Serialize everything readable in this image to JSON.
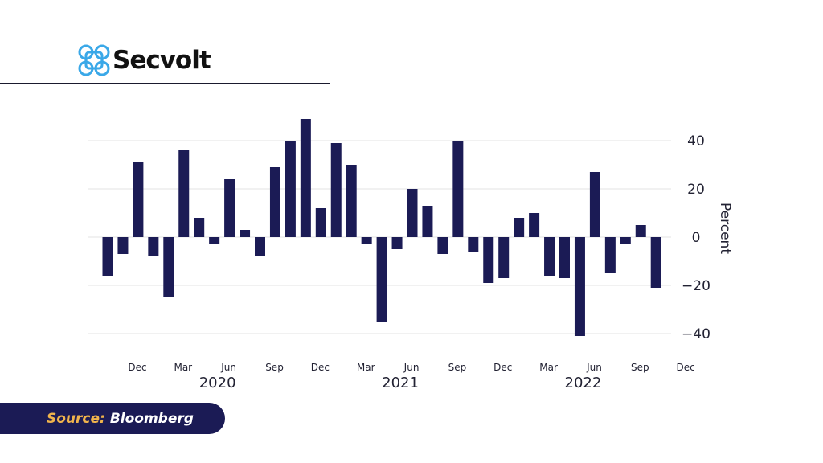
{
  "brand": {
    "name": "Secvolt",
    "logo_icon": "clover-knot-icon",
    "logo_color": "#3aa8e8"
  },
  "source": {
    "label": "Source:",
    "value": "Bloomberg"
  },
  "colors": {
    "bar": "#1b1b55",
    "grid": "#e3e3e3",
    "text": "#222233",
    "accent": "#f0b44c"
  },
  "chart_data": {
    "type": "bar",
    "title": "",
    "xlabel": "",
    "ylabel": "Percent",
    "ylim": [
      -45,
      50
    ],
    "yticks": [
      40,
      20,
      0,
      -20,
      -40
    ],
    "ytick_labels": [
      "40",
      "20",
      "0",
      "−20",
      "−40"
    ],
    "y_axis_side": "right",
    "grid": true,
    "month_ticks": [
      {
        "label": "Dec",
        "index": 1
      },
      {
        "label": "Mar",
        "index": 4
      },
      {
        "label": "Jun",
        "index": 7
      },
      {
        "label": "Sep",
        "index": 10
      },
      {
        "label": "Dec",
        "index": 13
      },
      {
        "label": "Mar",
        "index": 16
      },
      {
        "label": "Jun",
        "index": 19
      },
      {
        "label": "Sep",
        "index": 22
      },
      {
        "label": "Dec",
        "index": 25
      },
      {
        "label": "Mar",
        "index": 28
      },
      {
        "label": "Jun",
        "index": 31
      },
      {
        "label": "Sep",
        "index": 34
      },
      {
        "label": "Dec",
        "index": 37
      }
    ],
    "year_ticks": [
      {
        "label": "2020",
        "index": 7
      },
      {
        "label": "2021",
        "index": 19
      },
      {
        "label": "2022",
        "index": 31
      }
    ],
    "values": [
      -16,
      -7,
      31,
      -8,
      -25,
      36,
      8,
      -3,
      24,
      3,
      -8,
      29,
      40,
      49,
      12,
      39,
      30,
      -3,
      -35,
      -5,
      20,
      13,
      -7,
      40,
      -6,
      -19,
      -17,
      8,
      10,
      -16,
      -17,
      -41,
      27,
      -15,
      -3,
      5,
      -21
    ]
  }
}
